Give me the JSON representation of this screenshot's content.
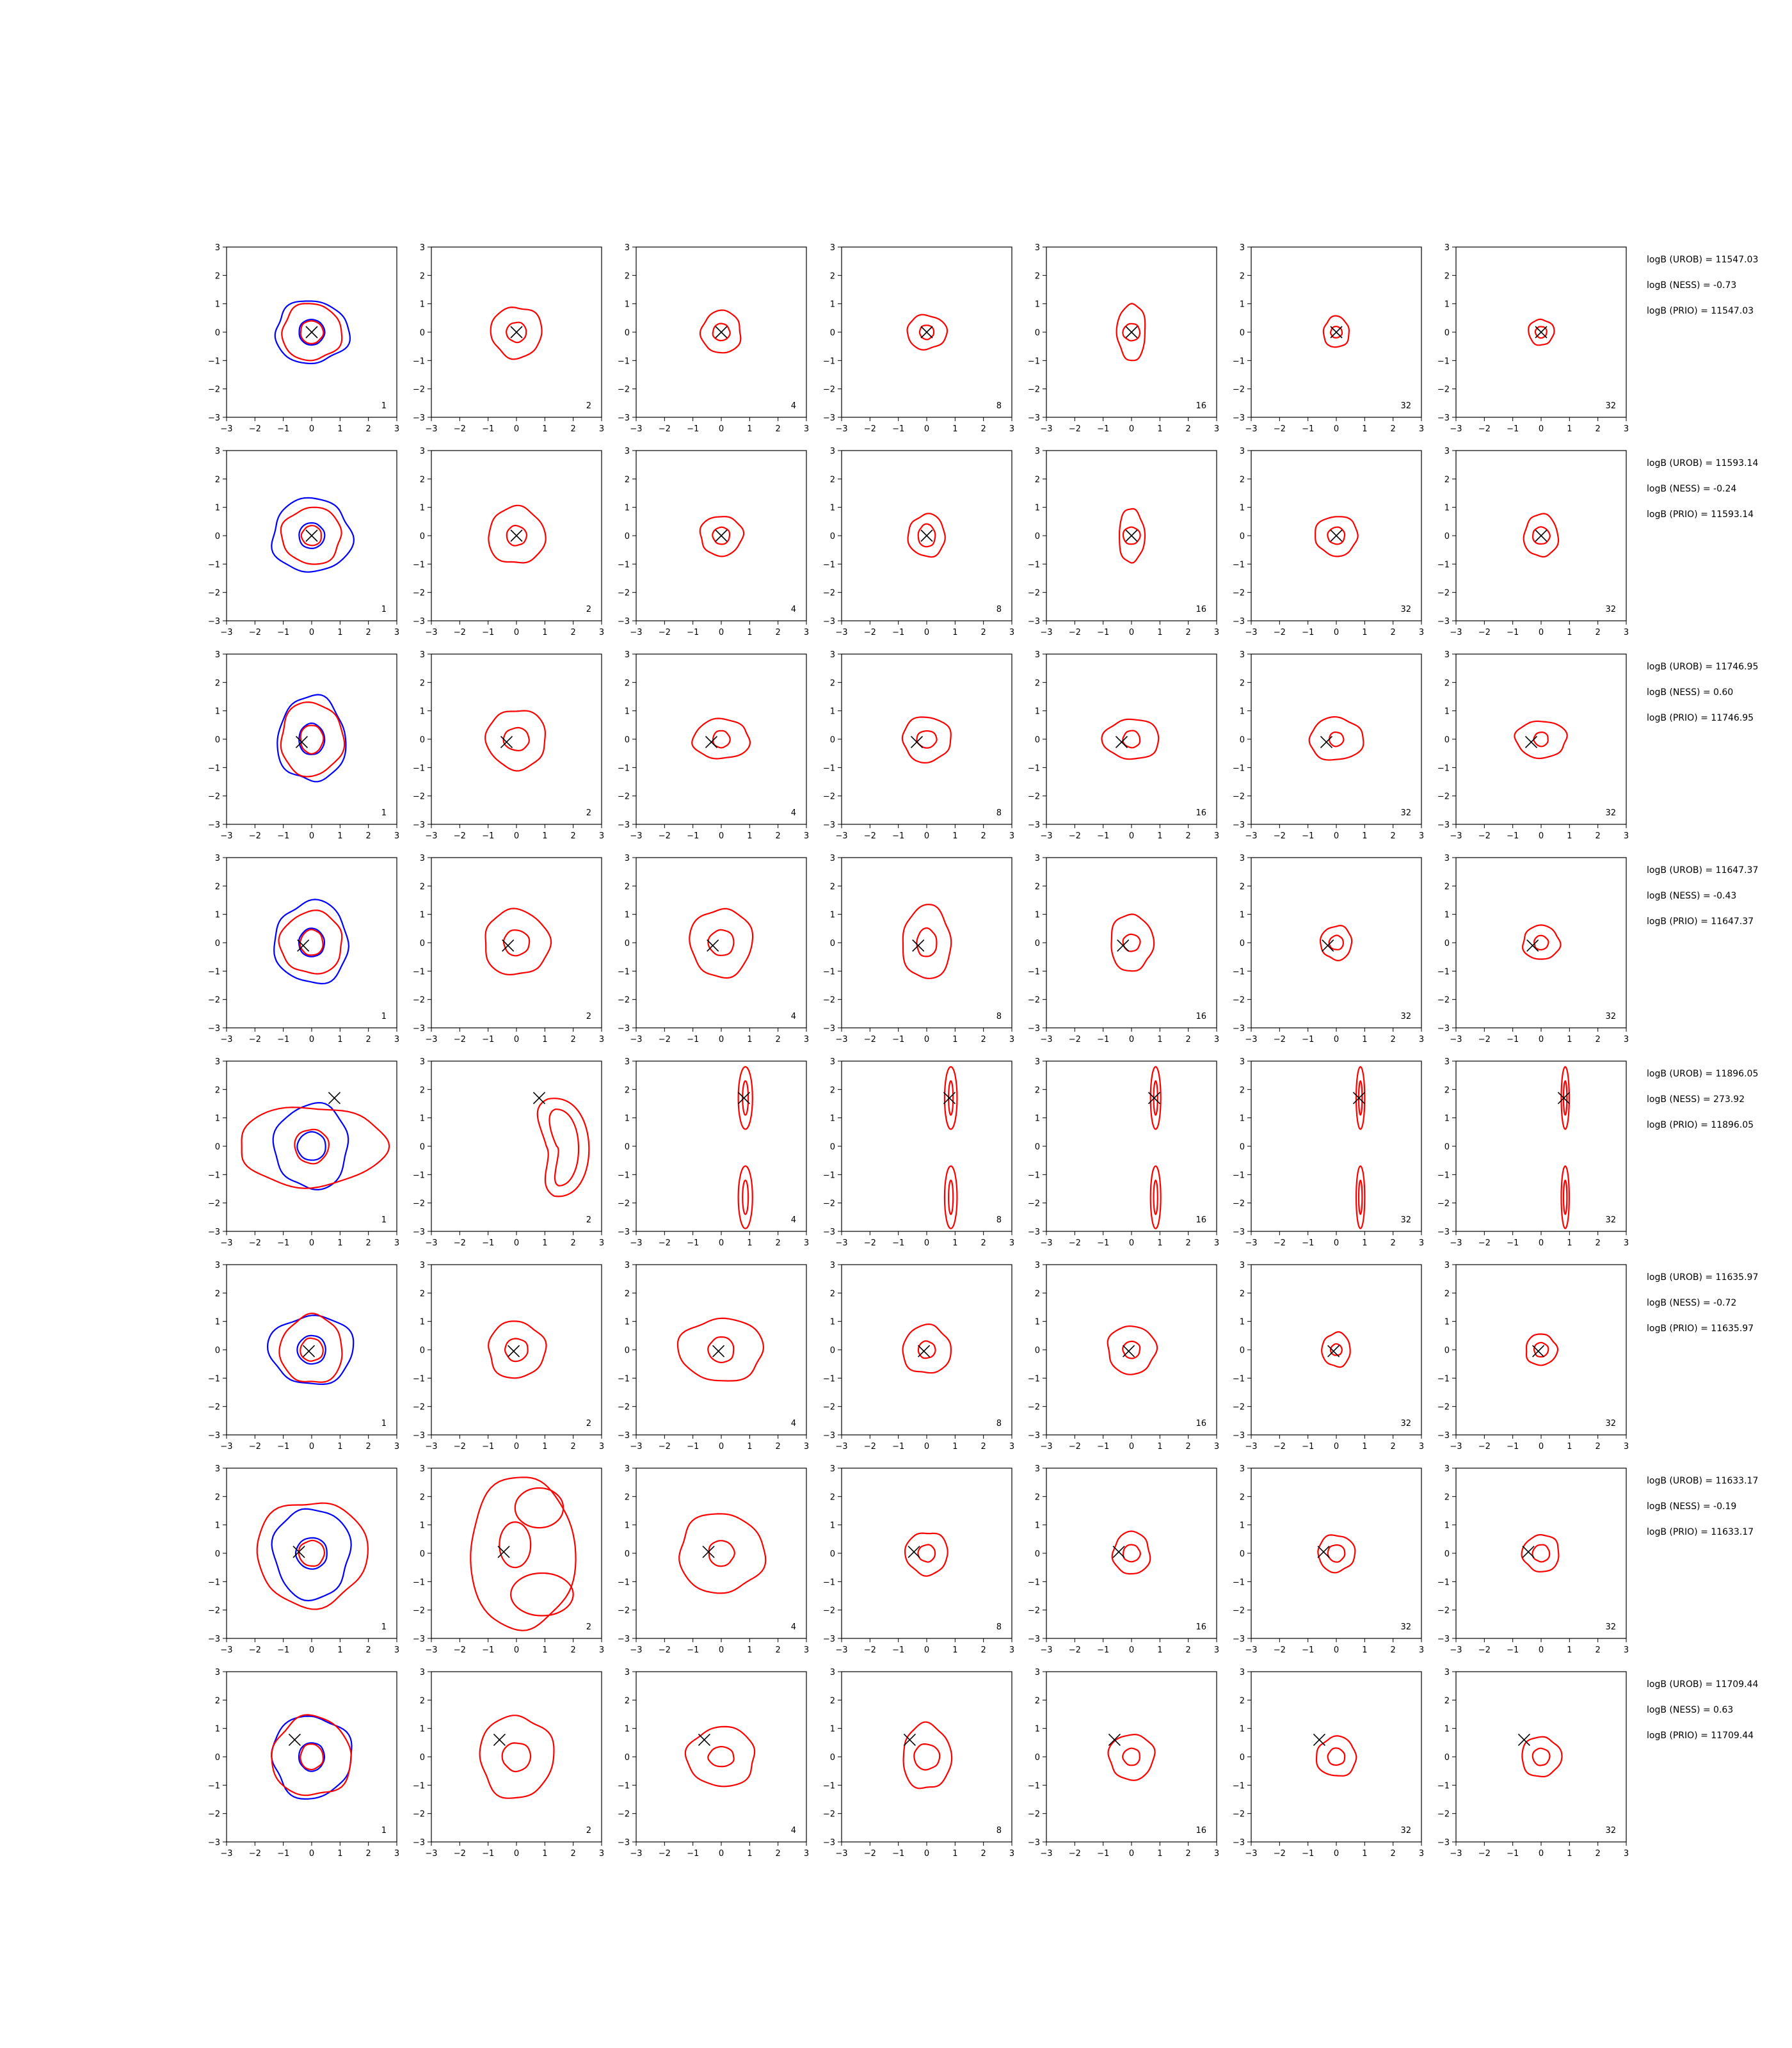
{
  "figure": {
    "col_labels": [
      "1",
      "2",
      "4",
      "8",
      "16",
      "32",
      "32"
    ],
    "axis": {
      "xlim": [
        -3,
        3
      ],
      "ylim": [
        -3,
        3
      ],
      "ticks": [
        "−3",
        "−2",
        "−1",
        "0",
        "1",
        "2",
        "3"
      ]
    },
    "colors": {
      "blue": "#0000ff",
      "red": "#ff0000",
      "marker": "#000000"
    }
  },
  "chart_data": {
    "type": "contour",
    "grid": "8 rows x 7 columns",
    "rows": [
      {
        "marker": [
          0,
          0
        ],
        "annotations": [
          "logB (UROB) = 11547.03",
          "logB (NESS) = -0.73",
          "logB (PRIO) = 11547.03"
        ],
        "panels": [
          {
            "blue": [
              [
                0.45,
                0.45
              ],
              [
                1.3,
                1.1
              ]
            ],
            "red": [
              [
                0.4,
                0.4
              ],
              [
                1.05,
                1.0
              ]
            ]
          },
          {
            "red": [
              [
                0.35,
                0.35
              ],
              [
                0.9,
                0.9
              ]
            ]
          },
          {
            "red": [
              [
                0.3,
                0.3
              ],
              [
                0.7,
                0.75
              ]
            ]
          },
          {
            "red": [
              [
                0.25,
                0.25
              ],
              [
                0.7,
                0.6
              ]
            ]
          },
          {
            "red": [
              [
                0.3,
                0.3
              ],
              [
                0.5,
                1.0
              ]
            ]
          },
          {
            "red": [
              [
                0.2,
                0.2
              ],
              [
                0.45,
                0.55
              ]
            ]
          },
          {
            "red": [
              [
                0.2,
                0.2
              ],
              [
                0.45,
                0.45
              ]
            ]
          }
        ]
      },
      {
        "marker": [
          0,
          0
        ],
        "annotations": [
          "logB (UROB) = 11593.14",
          "logB (NESS) = -0.24",
          "logB (PRIO) = 11593.14"
        ],
        "panels": [
          {
            "blue": [
              [
                0.45,
                0.45
              ],
              [
                1.4,
                1.3
              ]
            ],
            "red": [
              [
                0.35,
                0.35
              ],
              [
                1.05,
                1.0
              ]
            ]
          },
          {
            "red": [
              [
                0.35,
                0.35
              ],
              [
                1.0,
                1.0
              ]
            ]
          },
          {
            "red": [
              [
                0.3,
                0.3
              ],
              [
                0.75,
                0.7
              ]
            ]
          },
          {
            "red": [
              [
                0.3,
                0.4
              ],
              [
                0.65,
                0.75
              ]
            ]
          },
          {
            "red": [
              [
                0.3,
                0.3
              ],
              [
                0.45,
                0.95
              ]
            ]
          },
          {
            "red": [
              [
                0.3,
                0.3
              ],
              [
                0.75,
                0.7
              ]
            ]
          },
          {
            "red": [
              [
                0.3,
                0.3
              ],
              [
                0.6,
                0.75
              ]
            ]
          }
        ]
      },
      {
        "marker": [
          -0.35,
          -0.1
        ],
        "annotations": [
          "logB (UROB) = 11746.95",
          "logB (NESS) = 0.60",
          "logB (PRIO) = 11746.95"
        ],
        "panels": [
          {
            "blue": [
              [
                0.45,
                0.55
              ],
              [
                1.2,
                1.5
              ]
            ],
            "red": [
              [
                0.4,
                0.5
              ],
              [
                1.1,
                1.3
              ]
            ]
          },
          {
            "red": [
              [
                0.45,
                0.4
              ],
              [
                1.05,
                1.05
              ]
            ]
          },
          {
            "red": [
              [
                0.3,
                0.3
              ],
              [
                1.0,
                0.7
              ]
            ]
          },
          {
            "red": [
              [
                0.35,
                0.3
              ],
              [
                0.85,
                0.8
              ]
            ]
          },
          {
            "red": [
              [
                0.3,
                0.3
              ],
              [
                1.0,
                0.7
              ]
            ]
          },
          {
            "red": [
              [
                0.25,
                0.25
              ],
              [
                0.95,
                0.75
              ]
            ]
          },
          {
            "red": [
              [
                0.25,
                0.25
              ],
              [
                0.9,
                0.65
              ]
            ]
          }
        ]
      },
      {
        "marker": [
          -0.3,
          -0.1
        ],
        "annotations": [
          "logB (UROB) = 11647.37",
          "logB (NESS) = -0.43",
          "logB (PRIO) = 11647.37"
        ],
        "panels": [
          {
            "blue": [
              [
                0.45,
                0.5
              ],
              [
                1.3,
                1.45
              ]
            ],
            "red": [
              [
                0.4,
                0.45
              ],
              [
                1.1,
                1.1
              ]
            ]
          },
          {
            "red": [
              [
                0.45,
                0.45
              ],
              [
                1.15,
                1.15
              ]
            ]
          },
          {
            "red": [
              [
                0.45,
                0.45
              ],
              [
                1.1,
                1.2
              ]
            ]
          },
          {
            "red": [
              [
                0.35,
                0.5
              ],
              [
                0.85,
                1.3
              ]
            ]
          },
          {
            "red": [
              [
                0.3,
                0.3
              ],
              [
                0.75,
                1.0
              ]
            ]
          },
          {
            "red": [
              [
                0.25,
                0.25
              ],
              [
                0.55,
                0.6
              ]
            ]
          },
          {
            "red": [
              [
                0.25,
                0.25
              ],
              [
                0.65,
                0.6
              ]
            ]
          }
        ]
      },
      {
        "marker": [
          0.8,
          1.7
        ],
        "annotations": [
          "logB (UROB) = 11896.05",
          "logB (NESS) = 273.92",
          "logB (PRIO) = 11896.05"
        ],
        "panels": [
          {
            "blue": [
              [
                0.5,
                0.5
              ],
              [
                1.3,
                1.5
              ]
            ],
            "red": [
              [
                0.6,
                0.6
              ],
              [
                2.6,
                1.4
              ]
            ]
          },
          {
            "red_band": {
              "cx": 1.55,
              "ry": 1.8,
              "bend": 0.55
            }
          },
          {
            "red_columns": {
              "cx": 0.85,
              "centers": [
                1.7,
                -1.8
              ],
              "rx": [
                0.1,
                0.25
              ],
              "ry": [
                0.6,
                1.1
              ]
            }
          },
          {
            "red_columns": {
              "cx": 0.85,
              "centers": [
                1.7,
                -1.8
              ],
              "rx": [
                0.08,
                0.22
              ],
              "ry": [
                0.6,
                1.1
              ]
            }
          },
          {
            "red_columns": {
              "cx": 0.85,
              "centers": [
                1.7,
                -1.8
              ],
              "rx": [
                0.07,
                0.18
              ],
              "ry": [
                0.6,
                1.1
              ]
            }
          },
          {
            "red_columns": {
              "cx": 0.85,
              "centers": [
                1.7,
                -1.8
              ],
              "rx": [
                0.06,
                0.15
              ],
              "ry": [
                0.6,
                1.1
              ]
            }
          },
          {
            "red_columns": {
              "cx": 0.85,
              "centers": [
                1.7,
                -1.8
              ],
              "rx": [
                0.06,
                0.14
              ],
              "ry": [
                0.6,
                1.1
              ]
            }
          }
        ]
      },
      {
        "marker": [
          -0.1,
          -0.05
        ],
        "annotations": [
          "logB (UROB) = 11635.97",
          "logB (NESS) = -0.72",
          "logB (PRIO) = 11635.97"
        ],
        "panels": [
          {
            "blue": [
              [
                0.5,
                0.5
              ],
              [
                1.5,
                1.2
              ]
            ],
            "red": [
              [
                0.4,
                0.4
              ],
              [
                1.1,
                1.2
              ]
            ]
          },
          {
            "red": [
              [
                0.4,
                0.4
              ],
              [
                1.0,
                1.0
              ]
            ]
          },
          {
            "red": [
              [
                0.45,
                0.45
              ],
              [
                1.5,
                1.1
              ]
            ]
          },
          {
            "red": [
              [
                0.3,
                0.3
              ],
              [
                0.85,
                0.85
              ]
            ]
          },
          {
            "red": [
              [
                0.3,
                0.3
              ],
              [
                0.85,
                0.85
              ]
            ]
          },
          {
            "red": [
              [
                0.2,
                0.2
              ],
              [
                0.5,
                0.6
              ]
            ]
          },
          {
            "red": [
              [
                0.25,
                0.25
              ],
              [
                0.55,
                0.55
              ]
            ]
          }
        ]
      },
      {
        "marker": [
          -0.45,
          0.05
        ],
        "annotations": [
          "logB (UROB) = 11633.17",
          "logB (NESS) = -0.19",
          "logB (PRIO) = 11633.17"
        ],
        "panels": [
          {
            "blue": [
              [
                0.55,
                0.55
              ],
              [
                1.35,
                1.6
              ]
            ],
            "red": [
              [
                0.45,
                0.45
              ],
              [
                1.95,
                1.85
              ]
            ]
          },
          {
            "red_lobes": true
          },
          {
            "red": [
              [
                0.45,
                0.45
              ],
              [
                1.5,
                1.4
              ]
            ]
          },
          {
            "red": [
              [
                0.3,
                0.3
              ],
              [
                0.75,
                0.75
              ]
            ]
          },
          {
            "red": [
              [
                0.3,
                0.3
              ],
              [
                0.65,
                0.75
              ]
            ]
          },
          {
            "red": [
              [
                0.3,
                0.3
              ],
              [
                0.65,
                0.65
              ]
            ]
          },
          {
            "red": [
              [
                0.3,
                0.3
              ],
              [
                0.65,
                0.65
              ]
            ]
          }
        ]
      },
      {
        "marker": [
          -0.6,
          0.6
        ],
        "annotations": [
          "logB (UROB) = 11709.44",
          "logB (NESS) = 0.63",
          "logB (PRIO) = 11709.44"
        ],
        "panels": [
          {
            "blue": [
              [
                0.45,
                0.5
              ],
              [
                1.4,
                1.45
              ]
            ],
            "red": [
              [
                0.4,
                0.45
              ],
              [
                1.4,
                1.4
              ]
            ]
          },
          {
            "red": [
              [
                0.5,
                0.5
              ],
              [
                1.3,
                1.45
              ]
            ]
          },
          {
            "red": [
              [
                0.45,
                0.35
              ],
              [
                1.2,
                1.05
              ]
            ]
          },
          {
            "red": [
              [
                0.45,
                0.45
              ],
              [
                0.85,
                1.15
              ]
            ]
          },
          {
            "red": [
              [
                0.3,
                0.3
              ],
              [
                0.8,
                0.8
              ]
            ]
          },
          {
            "red": [
              [
                0.3,
                0.3
              ],
              [
                0.7,
                0.7
              ]
            ]
          },
          {
            "red": [
              [
                0.3,
                0.3
              ],
              [
                0.7,
                0.7
              ]
            ]
          }
        ]
      }
    ]
  }
}
